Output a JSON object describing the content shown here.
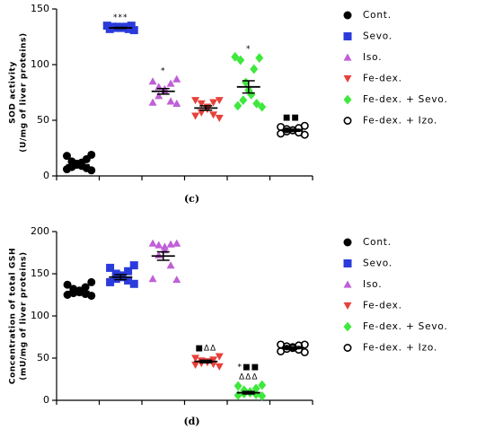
{
  "chart_data": [
    {
      "type": "scatter",
      "caption": "(c)",
      "ylabel": [
        "SOD activity",
        "(U/mg of liver proteins)"
      ],
      "ylim": [
        0,
        150
      ],
      "yticks": [
        0,
        50,
        100,
        150
      ],
      "series": [
        {
          "name": "Cont.",
          "color": "#000000",
          "marker": "circle",
          "values": [
            5,
            6,
            7,
            8,
            9,
            10,
            11,
            12,
            13,
            15,
            18,
            19
          ],
          "mean": 10,
          "sem": 1.3
        },
        {
          "name": "Sevo.",
          "color": "#2b3bdb",
          "marker": "square",
          "values": [
            131,
            132,
            132,
            133,
            133,
            133,
            134,
            134,
            134,
            135,
            135
          ],
          "mean": 133,
          "sem": 0.5,
          "annotations": [
            "***"
          ]
        },
        {
          "name": "Iso.",
          "color": "#c05fd8",
          "marker": "triangle-up",
          "values": [
            65,
            66,
            67,
            72,
            76,
            78,
            80,
            83,
            85,
            87
          ],
          "mean": 76,
          "sem": 2.5,
          "annotations": [
            "*"
          ]
        },
        {
          "name": "Fe-dex.",
          "color": "#e8403a",
          "marker": "triangle-down",
          "values": [
            52,
            54,
            55,
            57,
            60,
            62,
            65,
            66,
            68,
            68
          ],
          "mean": 61,
          "sem": 2
        },
        {
          "name": "Fe-dex. + Sevo.",
          "color": "#3ee83c",
          "marker": "diamond",
          "values": [
            62,
            63,
            65,
            68,
            73,
            77,
            84,
            96,
            104,
            106,
            107
          ],
          "mean": 80,
          "sem": 5.5,
          "annotations": [
            "*"
          ]
        },
        {
          "name": "Fe-dex. + Izo.",
          "color": "#000000",
          "marker": "open-circle",
          "values": [
            37,
            38,
            39,
            40,
            41,
            41,
            42,
            43,
            44,
            45
          ],
          "mean": 41,
          "sem": 1,
          "annotations": [
            "■■"
          ]
        }
      ]
    },
    {
      "type": "scatter",
      "caption": "(d)",
      "ylabel": [
        "Concentration of total GSH",
        "(mU/mg of liver proteins)"
      ],
      "ylim": [
        0,
        200
      ],
      "yticks": [
        0,
        50,
        100,
        150,
        200
      ],
      "series": [
        {
          "name": "Cont.",
          "color": "#000000",
          "marker": "circle",
          "values": [
            124,
            125,
            126,
            127,
            128,
            130,
            132,
            134,
            137,
            140
          ],
          "mean": 129,
          "sem": 2
        },
        {
          "name": "Sevo.",
          "color": "#2b3bdb",
          "marker": "square",
          "values": [
            138,
            140,
            142,
            144,
            146,
            148,
            150,
            153,
            157,
            160
          ],
          "mean": 146,
          "sem": 3
        },
        {
          "name": "Iso.",
          "color": "#c05fd8",
          "marker": "triangle-up",
          "values": [
            143,
            144,
            160,
            172,
            178,
            182,
            184,
            185,
            186,
            186
          ],
          "mean": 171,
          "sem": 5
        },
        {
          "name": "Fe-dex.",
          "color": "#e8403a",
          "marker": "triangle-down",
          "values": [
            40,
            42,
            43,
            44,
            45,
            46,
            47,
            48,
            50,
            52
          ],
          "mean": 46,
          "sem": 1.5,
          "annotations": [
            "■ΔΔ"
          ]
        },
        {
          "name": "Fe-dex. + Sevo.",
          "color": "#3ee83c",
          "marker": "diamond",
          "values": [
            5,
            6,
            7,
            8,
            9,
            10,
            12,
            14,
            17,
            18
          ],
          "mean": 9,
          "sem": 1.5,
          "annotations": [
            "*■■",
            "ΔΔΔ"
          ]
        },
        {
          "name": "Fe-dex. + Izo.",
          "color": "#000000",
          "marker": "open-circle",
          "values": [
            57,
            58,
            60,
            61,
            62,
            63,
            64,
            65,
            66,
            66
          ],
          "mean": 62,
          "sem": 1.5
        }
      ]
    }
  ]
}
